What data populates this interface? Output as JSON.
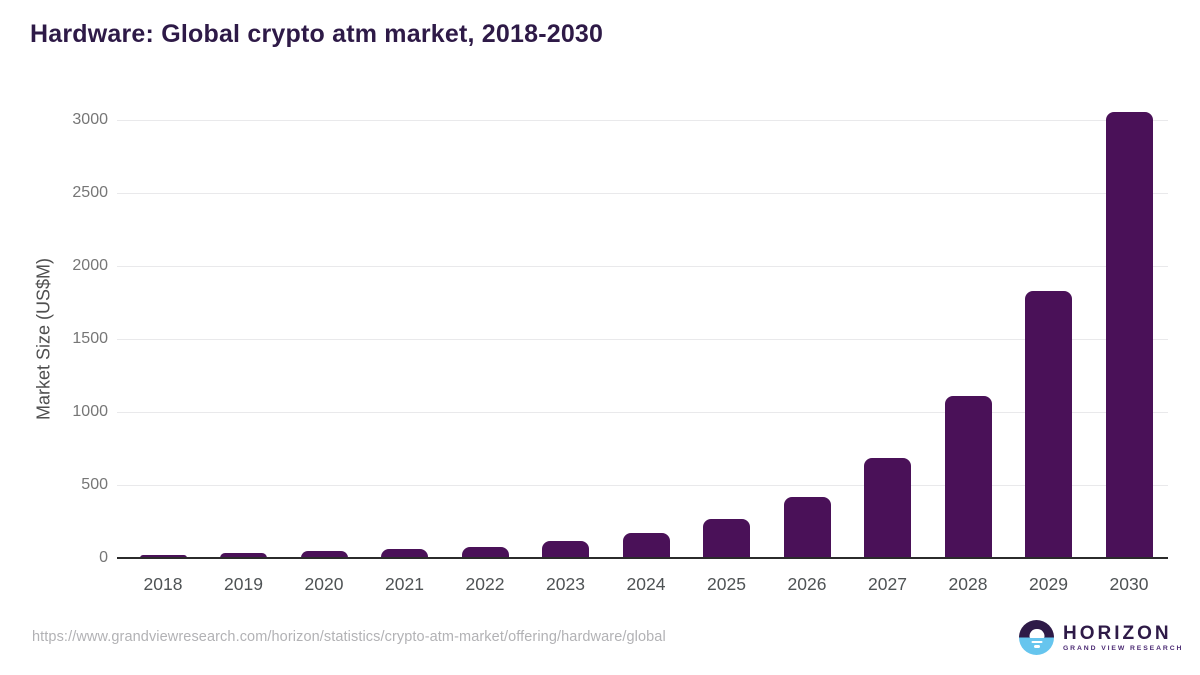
{
  "chart_data": {
    "type": "bar",
    "title": "Hardware: Global crypto atm market, 2018-2030",
    "categories": [
      "2018",
      "2019",
      "2020",
      "2021",
      "2022",
      "2023",
      "2024",
      "2025",
      "2026",
      "2027",
      "2028",
      "2029",
      "2030"
    ],
    "values": [
      20,
      32,
      45,
      62,
      78,
      118,
      168,
      270,
      420,
      685,
      1110,
      1830,
      3055
    ],
    "xlabel": "",
    "ylabel": "Market Size (US$M)",
    "ylim": [
      0,
      3000
    ],
    "yticks": [
      0,
      500,
      1000,
      1500,
      2000,
      2500,
      3000
    ],
    "grid": "horizontal",
    "legend": "none",
    "bar_color": "#4a1158"
  },
  "footer": {
    "source_url": "https://www.grandviewresearch.com/horizon/statistics/crypto-atm-market/offering/hardware/global",
    "logo": {
      "name": "HORIZON",
      "subtitle": "GRAND VIEW RESEARCH"
    }
  },
  "colors": {
    "title": "#2e1a47",
    "bar": "#4a1158",
    "logo_blue": "#66c5ee",
    "gridline": "#e9e9eb",
    "axis_line": "#2b2b2b"
  }
}
